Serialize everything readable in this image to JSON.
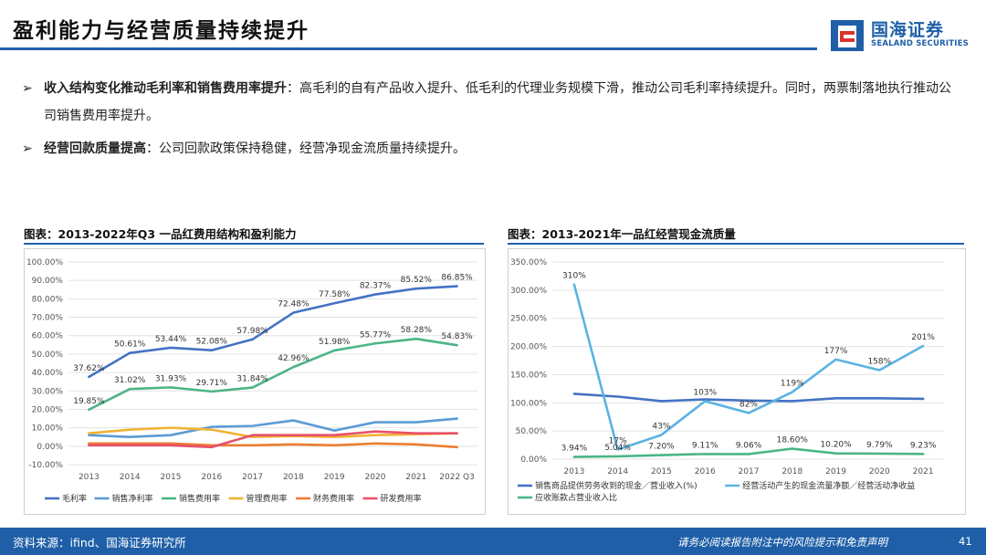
{
  "header": {
    "title": "盈利能力与经营质量持续提升",
    "logo_cn": "国海证券",
    "logo_en": "SEALAND SECURITIES"
  },
  "bullets": [
    {
      "marker": "➢",
      "bold": "收入结构变化推动毛利率和销售费用率提升",
      "text": "：高毛利的自有产品收入提升、低毛利的代理业务规模下滑，推动公司毛利率持续提升。同时，两票制落地执行推动公司销售费用率提升。"
    },
    {
      "marker": "➢",
      "bold": "经营回款质量提高",
      "text": "：公司回款政策保持稳健，经营净现金流质量持续提升。"
    }
  ],
  "charts": {
    "left_title": "图表：2013-2022年Q3 一品红费用结构和盈利能力",
    "right_title": "图表：2013-2021年一品红经营现金流质量"
  },
  "footer": {
    "source": "资料来源：ifind、国海证券研究所",
    "disclaimer": "请务必阅读报告附注中的风险提示和免责声明",
    "page": "41"
  },
  "chart_data": [
    {
      "type": "line",
      "title": "图表：2013-2022年Q3 一品红费用结构和盈利能力",
      "categories": [
        "2013",
        "2014",
        "2015",
        "2016",
        "2017",
        "2018",
        "2019",
        "2020",
        "2021",
        "2022 Q3"
      ],
      "y_ticks": [
        "-10.00%",
        "0.00%",
        "10.00%",
        "20.00%",
        "30.00%",
        "40.00%",
        "50.00%",
        "60.00%",
        "70.00%",
        "80.00%",
        "90.00%",
        "100.00%"
      ],
      "ylim": [
        -10,
        100
      ],
      "grid": true,
      "legend_position": "bottom",
      "series": [
        {
          "name": "毛利率",
          "color": "#4472c4",
          "values": [
            37.62,
            50.61,
            53.44,
            52.08,
            57.98,
            72.48,
            77.58,
            82.37,
            85.52,
            86.85
          ],
          "labels": [
            "37.62%",
            "50.61%",
            "53.44%",
            "52.08%",
            "57.98%",
            "72.48%",
            "77.58%",
            "82.37%",
            "85.52%",
            "86.85%"
          ]
        },
        {
          "name": "销售净利率",
          "color": "#5b9bd5",
          "values": [
            6,
            5,
            6,
            10.5,
            11,
            14,
            8.5,
            13,
            13,
            15
          ],
          "labels": []
        },
        {
          "name": "销售费用率",
          "color": "#4bb586",
          "values": [
            19.85,
            31.02,
            31.93,
            29.71,
            31.84,
            42.96,
            51.98,
            55.77,
            58.28,
            54.83
          ],
          "labels": [
            "19.85%",
            "31.02%",
            "31.93%",
            "29.71%",
            "31.84%",
            "42.96%",
            "51.98%",
            "55.77%",
            "58.28%",
            "54.83%"
          ]
        },
        {
          "name": "管理费用率",
          "color": "#f2b233",
          "values": [
            7,
            9,
            10,
            9,
            5,
            5.5,
            5,
            6,
            6.5,
            7
          ],
          "labels": []
        },
        {
          "name": "财务费用率",
          "color": "#ed7d31",
          "values": [
            1.5,
            1.5,
            1.5,
            0.5,
            0.5,
            1,
            0.5,
            1.5,
            1,
            -0.5
          ],
          "labels": []
        },
        {
          "name": "研发费用率",
          "color": "#e8506a",
          "values": [
            0.5,
            0.5,
            0.5,
            -0.5,
            6,
            6,
            6,
            8,
            7,
            7
          ],
          "labels": []
        }
      ]
    },
    {
      "type": "line",
      "title": "图表：2013-2021年一品红经营现金流质量",
      "categories": [
        "2013",
        "2014",
        "2015",
        "2016",
        "2017",
        "2018",
        "2019",
        "2020",
        "2021"
      ],
      "y_ticks": [
        "0.00%",
        "50.00%",
        "100.00%",
        "150.00%",
        "200.00%",
        "250.00%",
        "300.00%",
        "350.00%"
      ],
      "ylim": [
        0,
        350
      ],
      "grid": true,
      "legend_position": "bottom",
      "series": [
        {
          "name": "销售商品提供劳务收到的现金／营业收入(%)",
          "color": "#4472c4",
          "values": [
            116,
            111,
            103,
            106,
            104,
            103,
            108,
            108,
            107
          ],
          "labels": []
        },
        {
          "name": "经营活动产生的现金流量净额／经营活动净收益",
          "color": "#5bb3e1",
          "values": [
            310,
            17,
            43,
            103,
            82,
            119,
            177,
            158,
            201
          ],
          "labels": [
            "310%",
            "17%",
            "43%",
            "103%",
            "82%",
            "119%",
            "177%",
            "158%",
            "201%"
          ]
        },
        {
          "name": "应收账款占营业收入比",
          "color": "#4bb586",
          "values": [
            3.94,
            5.04,
            7.2,
            9.11,
            9.06,
            18.6,
            10.2,
            9.79,
            9.23
          ],
          "labels": [
            "3.94%",
            "5.04%",
            "7.20%",
            "9.11%",
            "9.06%",
            "18.60%",
            "10.20%",
            "9.79%",
            "9.23%"
          ]
        }
      ]
    }
  ]
}
